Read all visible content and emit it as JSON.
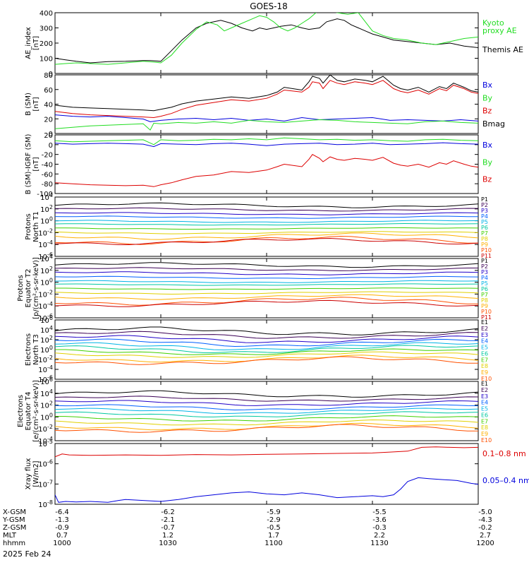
{
  "title": "GOES-18",
  "date_label": "2025 Feb 24",
  "colors": {
    "black": "#000000",
    "green": "#22dd22",
    "blue": "#0000dd",
    "red": "#dd0000",
    "ch": [
      "#000000",
      "#3b0055",
      "#2000c8",
      "#0060ff",
      "#00b4e6",
      "#00c8a0",
      "#40d000",
      "#e0d000",
      "#ffb000",
      "#ff5000",
      "#cc0000"
    ]
  },
  "chart_data": [
    {
      "type": "line",
      "ylabel": "AE_index\n[nT]",
      "yticks": [
        "400",
        "300",
        "200",
        "100",
        "0"
      ],
      "ylim": [
        0,
        400
      ],
      "legend": [
        {
          "text": "Kyoto\nproxy AE",
          "color": "green"
        },
        {
          "text": "Themis AE",
          "color": "black"
        }
      ],
      "series": [
        {
          "name": "Themis AE",
          "color": "black",
          "x": [
            0,
            3,
            6,
            10,
            15,
            20,
            25,
            27,
            30,
            33,
            36,
            40,
            43,
            47,
            50,
            53,
            56,
            58,
            60,
            62,
            64,
            67,
            70,
            72,
            75,
            77,
            80,
            82,
            84,
            86,
            88,
            90,
            93,
            96,
            100,
            104,
            108,
            112,
            116,
            120
          ],
          "y": [
            100,
            90,
            80,
            70,
            78,
            80,
            85,
            85,
            80,
            150,
            220,
            300,
            330,
            350,
            330,
            300,
            280,
            300,
            290,
            300,
            310,
            320,
            300,
            290,
            300,
            340,
            360,
            350,
            320,
            300,
            280,
            260,
            240,
            220,
            210,
            200,
            190,
            200,
            180,
            170
          ]
        },
        {
          "name": "Kyoto proxy AE",
          "color": "green",
          "x": [
            0,
            3,
            6,
            10,
            15,
            20,
            25,
            28,
            30,
            33,
            36,
            40,
            43,
            46,
            48,
            50,
            53,
            56,
            58,
            60,
            62,
            64,
            66,
            68,
            70,
            72,
            75,
            78,
            80,
            83,
            86,
            88,
            90,
            93,
            96,
            100,
            104,
            108,
            112,
            116,
            120
          ],
          "y": [
            60,
            65,
            70,
            65,
            60,
            70,
            80,
            75,
            70,
            120,
            200,
            290,
            340,
            320,
            280,
            300,
            330,
            360,
            380,
            370,
            340,
            300,
            280,
            300,
            330,
            360,
            420,
            410,
            400,
            390,
            400,
            340,
            280,
            250,
            230,
            220,
            200,
            190,
            210,
            230,
            240
          ]
        }
      ]
    },
    {
      "type": "line",
      "ylabel": "B (SM)\n[nT]",
      "yticks": [
        "80",
        "60",
        "40",
        "20",
        "0"
      ],
      "ylim": [
        -5,
        80
      ],
      "legend": [
        {
          "text": "Bx",
          "color": "blue"
        },
        {
          "text": "By",
          "color": "green"
        },
        {
          "text": "Bz",
          "color": "red"
        },
        {
          "text": "Bmag",
          "color": "black"
        }
      ],
      "series": [
        {
          "name": "Bmag",
          "color": "black",
          "x": [
            0,
            5,
            10,
            15,
            20,
            25,
            28,
            30,
            33,
            36,
            40,
            45,
            50,
            55,
            60,
            63,
            65,
            70,
            72,
            73,
            75,
            76,
            78,
            80,
            82,
            85,
            88,
            90,
            93,
            96,
            98,
            100,
            103,
            106,
            109,
            111,
            113,
            116,
            118,
            120
          ],
          "y": [
            36,
            33,
            32,
            31,
            30,
            29,
            28,
            30,
            33,
            38,
            42,
            45,
            48,
            46,
            50,
            55,
            62,
            58,
            70,
            78,
            75,
            68,
            80,
            72,
            70,
            74,
            72,
            70,
            78,
            65,
            60,
            58,
            62,
            55,
            63,
            60,
            68,
            62,
            57,
            55
          ]
        },
        {
          "name": "Bz",
          "color": "red",
          "x": [
            0,
            5,
            10,
            15,
            20,
            25,
            28,
            30,
            33,
            36,
            40,
            45,
            50,
            55,
            60,
            63,
            65,
            70,
            72,
            73,
            75,
            76,
            78,
            80,
            82,
            85,
            88,
            90,
            93,
            96,
            98,
            100,
            103,
            106,
            109,
            111,
            113,
            116,
            118,
            120
          ],
          "y": [
            27,
            24,
            22,
            21,
            20,
            19,
            18,
            20,
            24,
            30,
            36,
            40,
            44,
            42,
            46,
            52,
            58,
            55,
            62,
            70,
            68,
            60,
            72,
            68,
            66,
            70,
            68,
            66,
            72,
            60,
            56,
            54,
            58,
            52,
            60,
            57,
            65,
            60,
            55,
            53
          ]
        },
        {
          "name": "Bx",
          "color": "blue",
          "x": [
            0,
            5,
            10,
            15,
            20,
            25,
            27,
            30,
            35,
            40,
            45,
            50,
            55,
            60,
            65,
            70,
            75,
            80,
            85,
            90,
            95,
            100,
            105,
            110,
            115,
            120
          ],
          "y": [
            22,
            20,
            19,
            20,
            18,
            16,
            12,
            14,
            16,
            17,
            15,
            17,
            14,
            16,
            13,
            18,
            15,
            16,
            17,
            18,
            14,
            15,
            14,
            13,
            15,
            13
          ]
        },
        {
          "name": "By",
          "color": "green",
          "x": [
            0,
            5,
            10,
            15,
            20,
            25,
            27,
            28,
            30,
            35,
            40,
            45,
            50,
            55,
            60,
            65,
            70,
            75,
            80,
            85,
            90,
            95,
            100,
            105,
            110,
            115,
            120
          ],
          "y": [
            2,
            4,
            6,
            7,
            8,
            9,
            0,
            10,
            9,
            11,
            10,
            12,
            10,
            14,
            12,
            11,
            13,
            15,
            14,
            12,
            11,
            10,
            9,
            12,
            13,
            11,
            10
          ]
        }
      ]
    },
    {
      "type": "line",
      "ylabel": "B (SM)-IGRF (SM)\n[nT]",
      "yticks": [
        "20",
        "0",
        "-20",
        "-40",
        "-60",
        "-80",
        "-100"
      ],
      "ylim": [
        -100,
        20
      ],
      "legend": [
        {
          "text": "Bx",
          "color": "blue"
        },
        {
          "text": "By",
          "color": "green"
        },
        {
          "text": "Bz",
          "color": "red"
        }
      ],
      "series": [
        {
          "name": "By",
          "color": "green",
          "x": [
            0,
            5,
            10,
            15,
            20,
            25,
            28,
            30,
            35,
            40,
            45,
            50,
            55,
            60,
            65,
            70,
            75,
            80,
            85,
            90,
            95,
            100,
            105,
            110,
            115,
            120
          ],
          "y": [
            8,
            6,
            7,
            8,
            9,
            10,
            0,
            10,
            8,
            9,
            11,
            10,
            12,
            10,
            14,
            12,
            10,
            11,
            9,
            10,
            8,
            7,
            10,
            11,
            9,
            8
          ]
        },
        {
          "name": "Bx",
          "color": "blue",
          "x": [
            0,
            5,
            10,
            15,
            20,
            25,
            28,
            30,
            35,
            40,
            45,
            50,
            55,
            60,
            65,
            70,
            75,
            80,
            85,
            90,
            95,
            100,
            105,
            110,
            115,
            120
          ],
          "y": [
            3,
            1,
            2,
            3,
            2,
            1,
            -4,
            2,
            1,
            0,
            2,
            3,
            1,
            -2,
            1,
            2,
            3,
            0,
            1,
            3,
            0,
            1,
            2,
            4,
            2,
            1
          ]
        },
        {
          "name": "Bz",
          "color": "red",
          "x": [
            0,
            5,
            10,
            15,
            20,
            25,
            28,
            30,
            33,
            36,
            40,
            45,
            50,
            55,
            60,
            63,
            65,
            70,
            72,
            73,
            75,
            76,
            78,
            80,
            82,
            85,
            88,
            90,
            93,
            96,
            98,
            100,
            103,
            106,
            109,
            111,
            113,
            116,
            118,
            120
          ],
          "y": [
            -78,
            -80,
            -82,
            -83,
            -84,
            -83,
            -86,
            -82,
            -78,
            -72,
            -65,
            -62,
            -55,
            -57,
            -52,
            -45,
            -40,
            -45,
            -30,
            -20,
            -28,
            -35,
            -25,
            -30,
            -32,
            -28,
            -30,
            -32,
            -26,
            -38,
            -42,
            -44,
            -40,
            -46,
            -37,
            -40,
            -33,
            -40,
            -44,
            -46
          ]
        }
      ]
    },
    {
      "type": "line",
      "log": true,
      "ylabel": "Protons\nNorth T1",
      "yticks": [
        "10^4",
        "10^2",
        "10^0",
        "10^-2",
        "10^-4",
        "10^-6"
      ],
      "ylim": [
        -6,
        4
      ],
      "channels": [
        "P1",
        "P2",
        "P3",
        "P4",
        "P5",
        "P6",
        "P7",
        "P8",
        "P9",
        "P10",
        "P11"
      ],
      "base": [
        2.6,
        1.9,
        1.2,
        0.6,
        -0.1,
        -0.6,
        -1.3,
        -2.0,
        -2.6,
        -3.3,
        -3.5
      ],
      "amp": [
        0.3,
        0.2,
        0.15,
        0.15,
        0.15,
        0.1,
        0.1,
        0.15,
        0.4,
        0.5,
        0.4
      ]
    },
    {
      "type": "line",
      "log": true,
      "ylabel": "Protons\nEquator T2\n[p/(cm²-s-sr-keV)]",
      "yticks": [
        "10^4",
        "10^2",
        "10^0",
        "10^-2",
        "10^-4",
        "10^-6"
      ],
      "ylim": [
        -6,
        4
      ],
      "channels": [
        "P1",
        "P2",
        "P3",
        "P4",
        "P5",
        "P6",
        "P7",
        "P8",
        "P9",
        "P10",
        "P11"
      ],
      "base": [
        2.9,
        2.2,
        1.5,
        0.8,
        0.1,
        -0.4,
        -1.1,
        -1.8,
        -2.5,
        -3.2,
        -3.6
      ],
      "amp": [
        0.3,
        0.2,
        0.2,
        0.15,
        0.15,
        0.1,
        0.1,
        0.15,
        0.3,
        0.5,
        0.4
      ]
    },
    {
      "type": "line",
      "log": true,
      "ylabel": "Electrons\nNorth T3",
      "yticks": [
        "10^6",
        "10^4",
        "10^2",
        "10^0",
        "10^-2",
        "10^-4",
        "10^-6"
      ],
      "ylim": [
        -6,
        6
      ],
      "channels": [
        "E1",
        "E2",
        "E3",
        "E4",
        "E5",
        "E6",
        "E7",
        "E8",
        "E9",
        "E10"
      ],
      "base": [
        3.8,
        3.0,
        2.2,
        1.5,
        0.8,
        0.2,
        -0.4,
        -1.0,
        -1.8,
        -2.2
      ],
      "amp": [
        0.6,
        0.5,
        0.5,
        0.5,
        0.5,
        0.5,
        0.4,
        0.4,
        0.5,
        0.6
      ]
    },
    {
      "type": "line",
      "log": true,
      "ylabel": "Electrons\nEquator T4\n[e/(cm²-s-sr-keV)]",
      "yticks": [
        "10^6",
        "10^4",
        "10^2",
        "10^0",
        "10^-2",
        "10^-4"
      ],
      "ylim": [
        -4,
        6
      ],
      "channels": [
        "E1",
        "E2",
        "E3",
        "E4",
        "E5",
        "E6",
        "E7",
        "E8",
        "E9",
        "E10"
      ],
      "base": [
        3.9,
        3.1,
        2.4,
        1.7,
        1.1,
        0.5,
        -0.2,
        -0.9,
        -1.6,
        -1.9
      ],
      "amp": [
        0.4,
        0.3,
        0.3,
        0.3,
        0.3,
        0.3,
        0.3,
        0.3,
        0.4,
        0.5
      ]
    },
    {
      "type": "line",
      "log": true,
      "ylabel": "Xray flux\n[W/m2]",
      "yticks": [
        "10^-5",
        "10^-6",
        "10^-7",
        "10^-8"
      ],
      "ylim": [
        -8.2,
        -5
      ],
      "legend": [
        {
          "text": "0.1–0.8 nm",
          "color": "red"
        },
        {
          "text": "0.05–0.4 nm",
          "color": "blue"
        }
      ],
      "series": [
        {
          "name": "0.1–0.8 nm",
          "color": "red",
          "x": [
            0,
            2,
            4,
            10,
            20,
            30,
            40,
            50,
            60,
            70,
            80,
            90,
            95,
            100,
            104,
            108,
            112,
            116,
            120
          ],
          "y": [
            -5.7,
            -5.55,
            -5.6,
            -5.62,
            -5.6,
            -5.62,
            -5.58,
            -5.6,
            -5.57,
            -5.55,
            -5.52,
            -5.5,
            -5.45,
            -5.4,
            -5.2,
            -5.18,
            -5.2,
            -5.22,
            -5.2
          ]
        },
        {
          "name": "0.05–0.4 nm",
          "color": "blue",
          "x": [
            0,
            1,
            3,
            6,
            10,
            15,
            18,
            20,
            25,
            30,
            35,
            40,
            45,
            50,
            55,
            60,
            65,
            70,
            75,
            80,
            85,
            90,
            93,
            96,
            98,
            100,
            103,
            106,
            110,
            114,
            118,
            120
          ],
          "y": [
            -7.7,
            -8.1,
            -8.05,
            -8.08,
            -8.05,
            -8.1,
            -8.0,
            -7.95,
            -8.0,
            -8.05,
            -7.95,
            -7.8,
            -7.7,
            -7.6,
            -7.55,
            -7.65,
            -7.7,
            -7.6,
            -7.7,
            -7.85,
            -7.8,
            -7.75,
            -7.8,
            -7.7,
            -7.4,
            -7.0,
            -6.8,
            -6.85,
            -6.9,
            -6.95,
            -7.1,
            -7.15
          ]
        }
      ]
    }
  ],
  "x_axis": {
    "tick_minutes": [
      0,
      30,
      60,
      90,
      120
    ],
    "rows": [
      {
        "label": "X-GSM",
        "values": [
          "-6.4",
          "-6.2",
          "-5.9",
          "-5.5",
          "-5.0"
        ]
      },
      {
        "label": "Y-GSM",
        "values": [
          "-1.3",
          "-2.1",
          "-2.9",
          "-3.6",
          "-4.3"
        ]
      },
      {
        "label": "Z-GSM",
        "values": [
          "-0.9",
          "-0.7",
          "-0.5",
          "-0.3",
          "-0.2"
        ]
      },
      {
        "label": "MLT",
        "values": [
          "0.7",
          "1.2",
          "1.7",
          "2.2",
          "2.7"
        ]
      },
      {
        "label": "hhmm",
        "values": [
          "1000",
          "1030",
          "1100",
          "1130",
          "1200"
        ]
      }
    ]
  }
}
